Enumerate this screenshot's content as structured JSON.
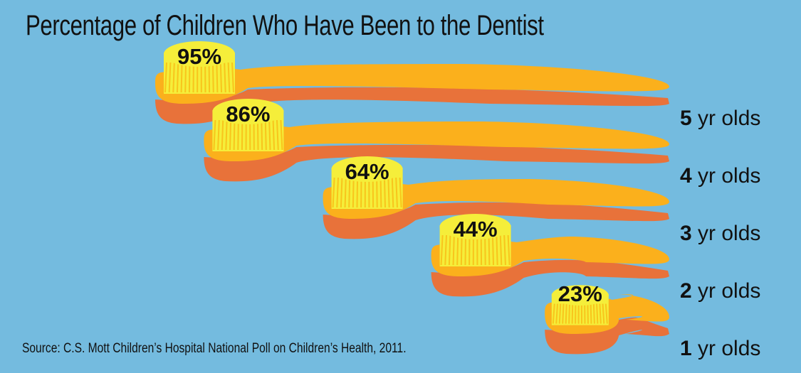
{
  "chart_data": {
    "type": "bar",
    "title": "Percentage of Children Who Have Been to the Dentist",
    "source": "Source: C.S. Mott Children’s Hospital National Poll on Children’s Health, 2011.",
    "categories": [
      "5",
      "4",
      "3",
      "2",
      "1"
    ],
    "category_suffix": "yr olds",
    "values": [
      95,
      86,
      64,
      44,
      23
    ],
    "value_labels": [
      "95%",
      "86%",
      "64%",
      "44%",
      "23%"
    ],
    "unit": "%",
    "orientation": "horizontal",
    "ylim": [
      0,
      100
    ],
    "bar_style": "toothbrush",
    "colors": {
      "background": "#74bbdf",
      "handle": "#fbb01c",
      "shadow": "#e8723a",
      "bristles": "#f5ee3a",
      "bristle_lines": "#f8c51c",
      "text": "#111111"
    }
  }
}
